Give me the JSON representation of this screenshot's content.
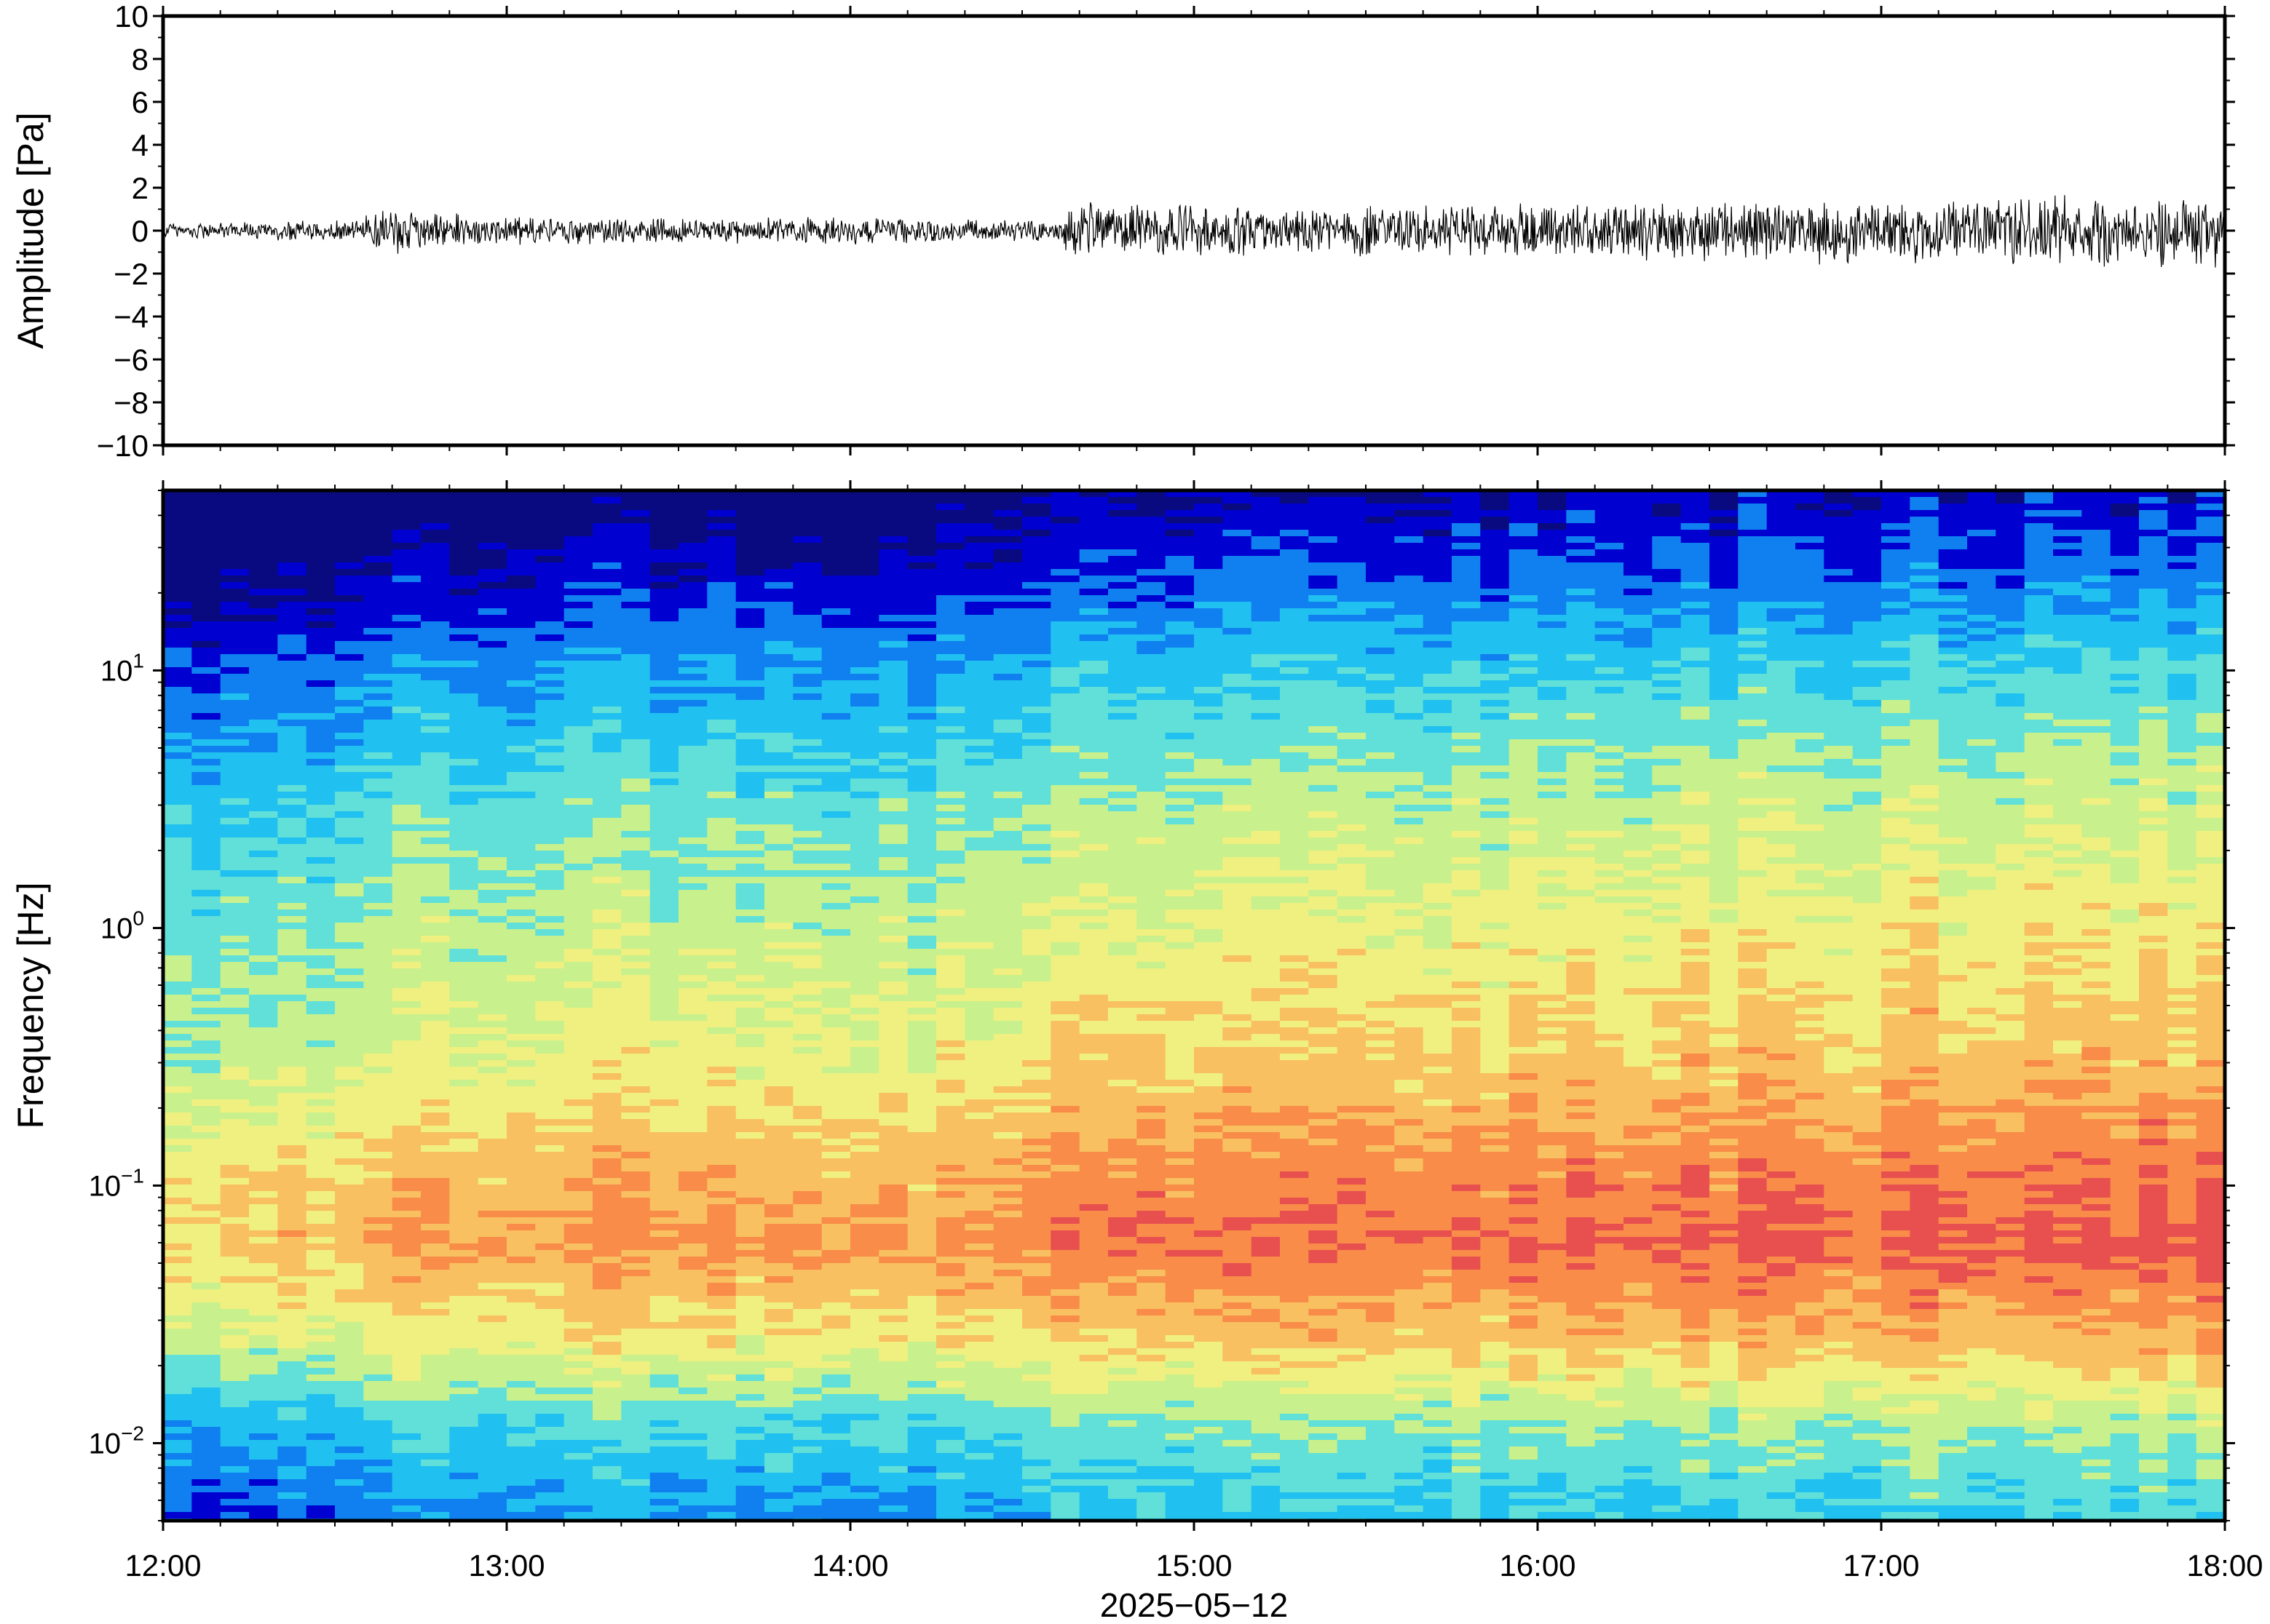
{
  "chart_data": [
    {
      "type": "line",
      "panel": "waveform",
      "ylabel": "Amplitude [Pa]",
      "ylim": [
        -10,
        10
      ],
      "yticks": [
        10,
        8,
        6,
        4,
        2,
        0,
        -2,
        -4,
        -6,
        -8,
        -10
      ],
      "ytick_labels": [
        "10",
        "8",
        "6",
        "4",
        "2",
        "0",
        "−2",
        "−4",
        "−6",
        "−8",
        "−10"
      ],
      "x_range_hours": [
        12,
        18
      ],
      "line_color": "#000000",
      "envelope": {
        "hour": [
          12.0,
          12.3,
          12.55,
          12.62,
          13.0,
          13.5,
          14.0,
          14.3,
          14.6,
          14.65,
          15.0,
          15.5,
          16.0,
          16.5,
          17.0,
          17.5,
          18.0
        ],
        "amp_pa": [
          0.35,
          0.4,
          0.5,
          1.0,
          0.6,
          0.55,
          0.6,
          0.5,
          0.45,
          1.2,
          1.1,
          1.1,
          1.2,
          1.3,
          1.4,
          1.5,
          1.5
        ]
      }
    },
    {
      "type": "heatmap",
      "panel": "spectrogram",
      "ylabel": "Frequency [Hz]",
      "yscale": "log",
      "ylim_hz": [
        0.005,
        50
      ],
      "ytick_labels": [
        {
          "base": "10",
          "exp": "1"
        },
        {
          "base": "10",
          "exp": "0"
        },
        {
          "base": "10",
          "exp": "−1"
        },
        {
          "base": "10",
          "exp": "−2"
        }
      ],
      "ytick_values": [
        10,
        1,
        0.1,
        0.01
      ],
      "colormap": "jet",
      "column_count": 72,
      "power_profile": {
        "freq_hz": [
          0.005,
          0.012,
          0.025,
          0.06,
          0.1,
          0.3,
          1,
          3,
          10,
          25,
          50
        ],
        "level": [
          0.28,
          0.42,
          0.66,
          0.82,
          0.78,
          0.64,
          0.55,
          0.46,
          0.3,
          0.12,
          0.02
        ]
      },
      "column_offset": {
        "hour": [
          12.0,
          12.6,
          12.62,
          14.6,
          14.65,
          15.5,
          16.5,
          17.5,
          18.0
        ],
        "level": [
          -0.1,
          -0.08,
          0.0,
          0.0,
          0.08,
          0.08,
          0.1,
          0.12,
          0.12
        ]
      },
      "colors": [
        "#0a0a80",
        "#0000d0",
        "#1080f0",
        "#20c0f0",
        "#60e0d8",
        "#c8f08c",
        "#f0f080",
        "#f8c060",
        "#f88c48",
        "#e85050"
      ]
    }
  ],
  "x_axis": {
    "tick_labels": [
      "12:00",
      "13:00",
      "14:00",
      "15:00",
      "16:00",
      "17:00",
      "18:00"
    ],
    "tick_hours": [
      12,
      13,
      14,
      15,
      16,
      17,
      18
    ],
    "xlabel": "2025−05−12"
  }
}
